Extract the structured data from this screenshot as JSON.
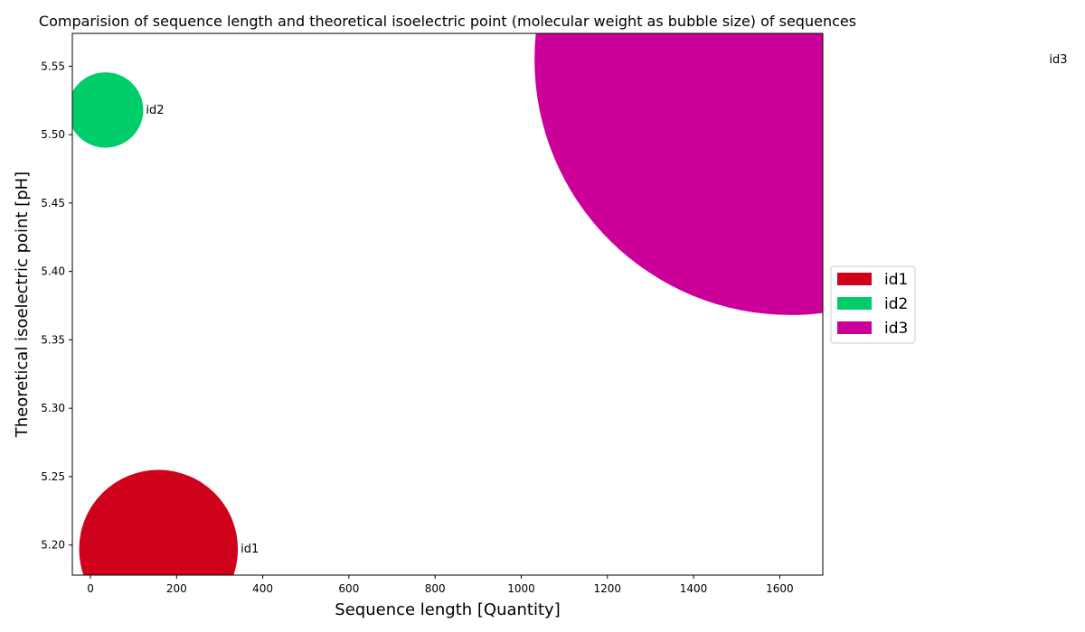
{
  "chart_data": {
    "type": "scatter",
    "title": "Comparision of sequence length and theoretical isoelectric point (molecular weight as bubble size) of sequences",
    "xlabel": "Sequence length [Quantity]",
    "ylabel": "Theoretical isoelectric point [pH]",
    "xlim": [
      -42,
      1700
    ],
    "ylim": [
      5.178,
      5.574
    ],
    "xticks": [
      0,
      200,
      400,
      600,
      800,
      1000,
      1200,
      1400,
      1600
    ],
    "yticks": [
      5.2,
      5.25,
      5.3,
      5.35,
      5.4,
      5.45,
      5.5,
      5.55
    ],
    "ytick_labels": [
      "5.20",
      "5.25",
      "5.30",
      "5.35",
      "5.40",
      "5.45",
      "5.50",
      "5.55"
    ],
    "grid": false,
    "legend_position": "center-right",
    "points": [
      {
        "name": "id1",
        "x": 158,
        "y": 5.197,
        "size": 17700,
        "color": "#d0021b"
      },
      {
        "name": "id2",
        "x": 35,
        "y": 5.518,
        "size": 4000,
        "color": "#00cc6a"
      },
      {
        "name": "id3",
        "x": 1625,
        "y": 5.555,
        "size": 184000,
        "color": "#cc0099"
      }
    ]
  }
}
